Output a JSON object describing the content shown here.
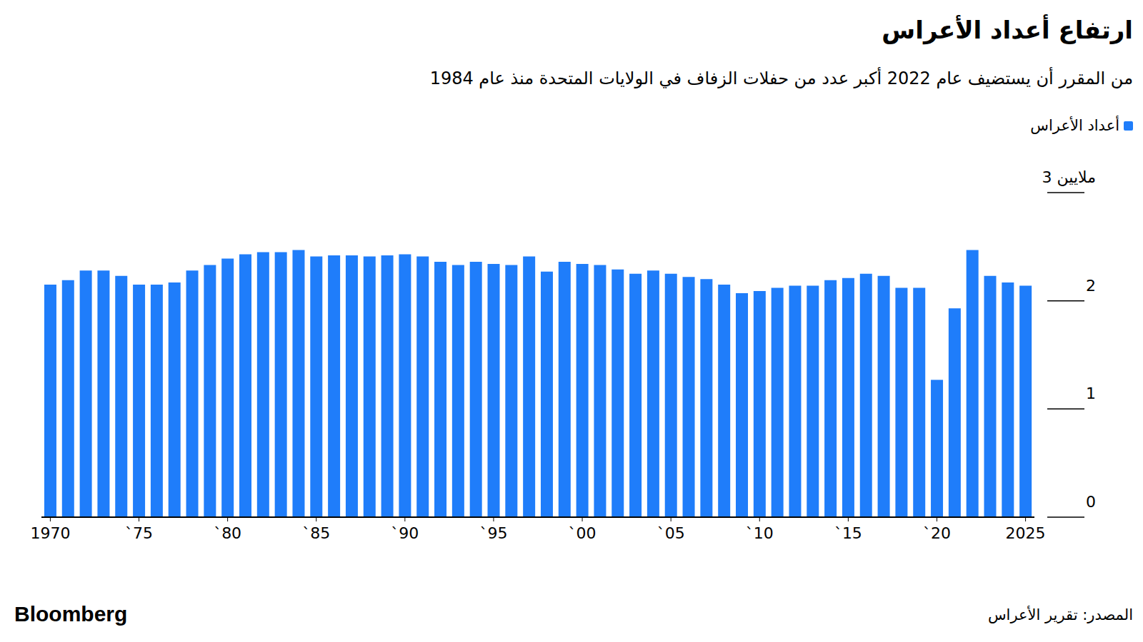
{
  "chart_data": {
    "type": "bar",
    "title": "ارتفاع أعداد الأعراس",
    "subtitle": "من المقرر أن يستضيف عام 2022 أكبر عدد من حفلات الزفاف في الولايات المتحدة منذ عام 1984",
    "source": "المصدر: تقرير الأعراس",
    "branding": "Bloomberg",
    "categories": [
      "1970",
      null,
      null,
      null,
      null,
      "`75",
      null,
      null,
      null,
      null,
      "`80",
      null,
      null,
      null,
      null,
      "`85",
      null,
      null,
      null,
      null,
      "`90",
      null,
      null,
      null,
      null,
      "`95",
      null,
      null,
      null,
      null,
      "`00",
      null,
      null,
      null,
      null,
      "`05",
      null,
      null,
      null,
      null,
      "`10",
      null,
      null,
      null,
      null,
      "`15",
      null,
      null,
      null,
      null,
      "`20",
      null,
      null,
      null,
      null,
      "2025"
    ],
    "series": [
      {
        "name": "أعداد الأعراس",
        "color": "#1f7dfa",
        "values": [
          2.15,
          2.19,
          2.28,
          2.28,
          2.23,
          2.15,
          2.15,
          2.17,
          2.28,
          2.33,
          2.39,
          2.43,
          2.45,
          2.45,
          2.47,
          2.41,
          2.42,
          2.42,
          2.41,
          2.42,
          2.43,
          2.41,
          2.36,
          2.33,
          2.36,
          2.34,
          2.33,
          2.41,
          2.27,
          2.36,
          2.34,
          2.33,
          2.29,
          2.25,
          2.28,
          2.25,
          2.22,
          2.2,
          2.15,
          2.07,
          2.09,
          2.12,
          2.14,
          2.14,
          2.19,
          2.21,
          2.25,
          2.23,
          2.12,
          2.12,
          1.27,
          1.93,
          2.47,
          2.23,
          2.17,
          2.14
        ]
      }
    ],
    "ylim": [
      0,
      3
    ],
    "yticks": [
      0,
      1,
      2,
      {
        "value": 3,
        "label": "3 ملايين"
      }
    ],
    "legend": "top-right"
  }
}
